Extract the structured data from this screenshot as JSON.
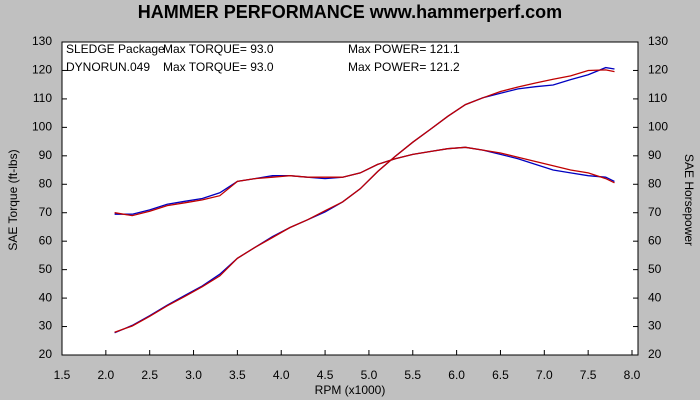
{
  "chart_data": {
    "type": "line",
    "title": "HAMMER PERFORMANCE www.hammerperf.com",
    "x_label": "RPM (x1000)",
    "y_label": "SAE Torque (ft-lbs)",
    "y2_label": "SAE Horsepower",
    "xlim": [
      1.5,
      8.0
    ],
    "xticks": [
      1.5,
      {
        "value": 2,
        "label": "2.0"
      },
      2.5,
      {
        "value": 3,
        "label": "3.0"
      },
      3.5,
      {
        "value": 4,
        "label": "4.0"
      },
      4.5,
      {
        "value": 5,
        "label": "5.0"
      },
      5.5,
      {
        "value": 6,
        "label": "6.0"
      },
      6.5,
      {
        "value": 7,
        "label": "7.0"
      },
      7.5,
      {
        "value": 8,
        "label": "8.0"
      }
    ],
    "ylim": [
      20,
      130
    ],
    "yticks": [
      20,
      30,
      40,
      50,
      60,
      70,
      80,
      90,
      100,
      110,
      120,
      130
    ],
    "y2lim": [
      20,
      130
    ],
    "y2ticks": [
      20,
      30,
      40,
      50,
      60,
      70,
      80,
      90,
      100,
      110,
      120,
      130
    ],
    "x": [
      2.1,
      2.3,
      2.5,
      2.7,
      2.9,
      3.1,
      3.3,
      3.5,
      3.7,
      3.9,
      4.1,
      4.3,
      4.5,
      4.7,
      4.9,
      5.1,
      5.3,
      5.5,
      5.7,
      5.9,
      6.1,
      6.3,
      6.5,
      6.7,
      6.9,
      7.1,
      7.3,
      7.5,
      7.7,
      7.8
    ],
    "series": [
      {
        "name": "SLEDGE Package",
        "color": "#0000c0",
        "max_torque_label": "Max TORQUE= 93.0",
        "max_power_label": "Max POWER= 121.1",
        "values": [
          69.5,
          69.5,
          71,
          73,
          74,
          75,
          77,
          81,
          82,
          83,
          83,
          82.5,
          82,
          82.5,
          84,
          87,
          89,
          90.5,
          91.5,
          92.5,
          93,
          92,
          90.5,
          89,
          87,
          85,
          84,
          83,
          82.5,
          81
        ],
        "power": [
          27.8,
          30.4,
          33.8,
          37.5,
          40.9,
          44.3,
          48.4,
          54.0,
          57.8,
          61.6,
          64.8,
          67.5,
          70.3,
          73.8,
          78.4,
          84.5,
          89.8,
          94.8,
          99.3,
          103.9,
          108.0,
          110.4,
          112.0,
          113.5,
          114.3,
          114.9,
          116.8,
          118.5,
          121.0,
          120.5
        ]
      },
      {
        "name": "DYNORUN.049",
        "color": "#c00000",
        "max_torque_label": "Max TORQUE= 93.0",
        "max_power_label": "Max POWER= 121.2",
        "values": [
          70,
          69,
          70.5,
          72.5,
          73.5,
          74.5,
          76,
          81,
          82,
          82.5,
          83,
          82.5,
          82.5,
          82.5,
          84,
          87,
          89,
          90.5,
          91.5,
          92.5,
          93,
          92,
          91,
          89.5,
          88,
          86.5,
          85,
          84,
          82,
          80.5
        ],
        "power": [
          28.0,
          30.2,
          33.6,
          37.3,
          40.6,
          44.0,
          47.8,
          54.0,
          57.8,
          61.3,
          64.8,
          67.5,
          70.7,
          73.8,
          78.4,
          84.5,
          89.8,
          94.8,
          99.3,
          103.9,
          108.0,
          110.4,
          112.6,
          114.2,
          115.6,
          116.9,
          118.1,
          120.0,
          120.2,
          119.6
        ]
      }
    ]
  }
}
